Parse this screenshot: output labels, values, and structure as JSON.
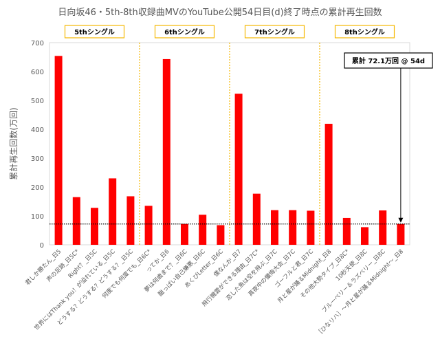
{
  "chart_data": {
    "type": "bar",
    "title": "日向坂46・5th-8th収録曲MVのYouTube公開54日目(d)終了時点の累計再生回数",
    "ylabel": "累計再生回数(万回)",
    "ylim": [
      0,
      700
    ],
    "yticks": [
      0,
      100,
      200,
      300,
      400,
      500,
      600,
      700
    ],
    "grid": false,
    "bar_color": "#ff0000",
    "categories": [
      "君しか勝たん_日5",
      "声の足跡_日5C*",
      "Right？_日5C",
      "世界にはThank you！が溢れている_日5C",
      "どうする？どうする？どうする？_日5C",
      "何度でも何度でも_日6C*",
      "ってか_日6",
      "夢は何歳まで？_日6C",
      "酸っぱい自己嫌悪_日6C",
      "あくびLetter_日6C",
      "僕なんか_日7",
      "飛行機雲ができる理由_日7C*",
      "恋した魚は空を飛ぶ_日7C",
      "真夜中の懺悔大会_日7C",
      "ゴーフルと君_日7C",
      "月と星が踊るMidnight_日8",
      "その他大勢タイプ_日8C*",
      "10秒天使_日8C",
      "ブルーベリー＆ラズベリー_日8C",
      "［ひなリハ］～月と星が踊るMidnight～_日8"
    ],
    "values": [
      654,
      165,
      128,
      230,
      168,
      135,
      643,
      72,
      104,
      68,
      523,
      177,
      120,
      120,
      118,
      419,
      93,
      61,
      119,
      72.1
    ],
    "groups": [
      {
        "label": "5thシングル",
        "start": 0,
        "end": 4
      },
      {
        "label": "6thシングル",
        "start": 5,
        "end": 9
      },
      {
        "label": "7thシングル",
        "start": 10,
        "end": 14
      },
      {
        "label": "8thシングル",
        "start": 15,
        "end": 19
      }
    ],
    "reference_line": {
      "value": 72.1,
      "style": "dotted"
    },
    "annotation": {
      "text": "累計 72.1万回 @ 54d",
      "target_index": 19
    }
  }
}
